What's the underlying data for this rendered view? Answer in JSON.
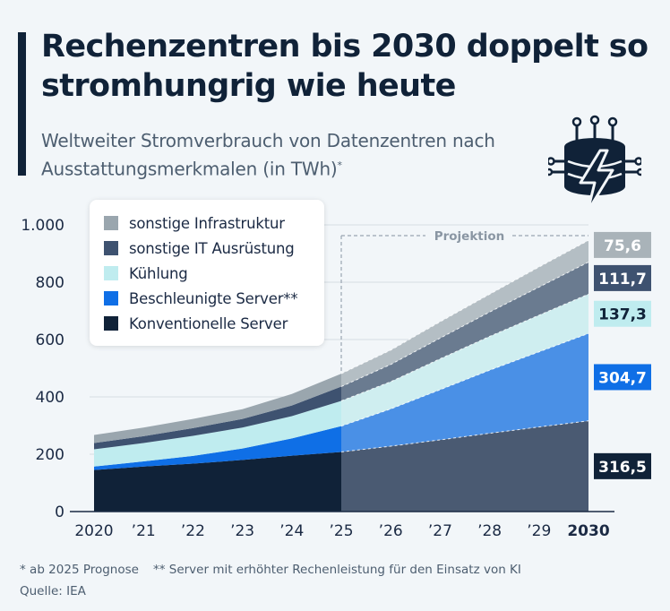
{
  "header": {
    "title": "Rechenzentren bis 2030 doppelt so stromhungrig wie heute",
    "subtitle": "Weltweiter Stromverbrauch von Datenzentren nach Ausstattungsmerkmalen (in TWh)",
    "subtitle_mark": "*"
  },
  "chart_data": {
    "type": "area",
    "stacked": true,
    "title": "Weltweiter Stromverbrauch von Datenzentren nach Ausstattungsmerkmalen (in TWh)",
    "xlabel": "",
    "ylabel": "",
    "x": [
      2020,
      2021,
      2022,
      2023,
      2024,
      2025,
      2026,
      2027,
      2028,
      2029,
      2030
    ],
    "x_tick_labels": [
      "2020",
      "’21",
      "’22",
      "’23",
      "’24",
      "’25",
      "’26",
      "’27",
      "’28",
      "’29",
      "2030"
    ],
    "ylim": [
      0,
      1000
    ],
    "y_ticks": [
      0,
      200,
      400,
      600,
      800,
      1000
    ],
    "y_tick_labels": [
      "0",
      "200",
      "400",
      "600",
      "800",
      "1.000"
    ],
    "grid": true,
    "projection_start": 2025,
    "projection_label": "Projektion",
    "series": [
      {
        "name": "Konventionelle Server",
        "color": "#102238",
        "projected_color": "#4a5a72",
        "label_bg": "#102238",
        "label_fg": "#ffffff",
        "values": [
          145,
          157,
          167,
          180,
          195,
          208,
          228,
          250,
          273,
          295,
          316.5
        ],
        "end_label": "316,5"
      },
      {
        "name": "Beschleunigte Server**",
        "color": "#0f6fe6",
        "projected_color": "#4a90e6",
        "label_bg": "#0f6fe6",
        "label_fg": "#ffffff",
        "values": [
          12,
          18,
          27,
          40,
          60,
          90,
          130,
          175,
          220,
          262,
          304.7
        ],
        "end_label": "304,7"
      },
      {
        "name": "Kühlung",
        "color": "#bfecef",
        "projected_color": "#cfeef0",
        "label_bg": "#bfecef",
        "label_fg": "#102238",
        "values": [
          60,
          64,
          70,
          73,
          78,
          88,
          95,
          108,
          118,
          128,
          137.3
        ],
        "end_label": "137,3"
      },
      {
        "name": "sonstige IT Ausrüstung",
        "color": "#3e5270",
        "projected_color": "#6a7b90",
        "label_bg": "#3e5270",
        "label_fg": "#ffffff",
        "values": [
          22,
          24,
          27,
          30,
          37,
          50,
          60,
          72,
          85,
          98,
          111.7
        ],
        "end_label": "111,7"
      },
      {
        "name": "sonstige Infrastruktur",
        "color": "#9aa6ae",
        "projected_color": "#b4bec4",
        "label_bg": "#a9b3b9",
        "label_fg": "#ffffff",
        "values": [
          28,
          30,
          32,
          34,
          40,
          45,
          50,
          57,
          62,
          70,
          75.6
        ],
        "end_label": "75,6"
      }
    ]
  },
  "legend_order": [
    "sonstige Infrastruktur",
    "sonstige IT Ausrüstung",
    "Kühlung",
    "Beschleunigte Server**",
    "Konventionelle Server"
  ],
  "footnotes": {
    "note1": "* ab 2025 Prognose",
    "note2": "** Server mit erhöhter Rechenleistung für den Einsatz von KI",
    "source": "Quelle: IEA"
  },
  "icon": "data-center-lightning-icon"
}
